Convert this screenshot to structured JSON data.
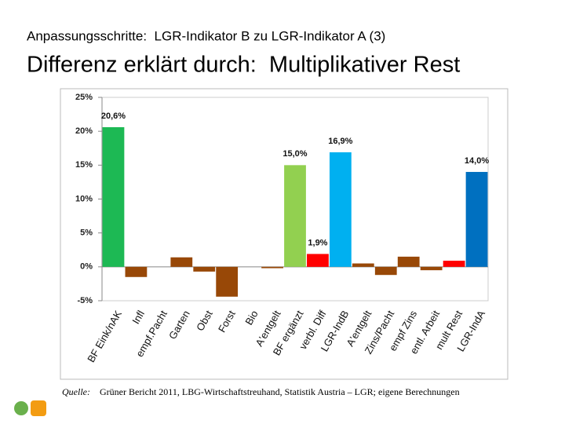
{
  "chart_data": {
    "type": "bar",
    "subtitle": "Anpassungsschritte:  LGR-Indikator B zu LGR-Indikator A (3)",
    "title": "Differenz erklärt durch:  Multiplikativer Rest",
    "categories": [
      "BF Eink/nAK",
      "Infl",
      "empf.Pacht",
      "Garten",
      "Obst",
      "Forst",
      "Bio",
      "A'entgelt",
      "BF ergänzt",
      "verbl. Diff",
      "LGR-IndB",
      "A'entgelt",
      "Zins/Pacht",
      "empf Zins",
      "entl. Arbeit",
      "mult Rest",
      "LGR-IndA"
    ],
    "values": [
      20.6,
      -1.5,
      0,
      1.4,
      -0.7,
      -4.4,
      0,
      -0.2,
      15.0,
      1.9,
      16.9,
      0.5,
      -1.2,
      1.5,
      -0.5,
      0.9,
      14.0
    ],
    "value_labels": [
      "20,6%",
      null,
      null,
      null,
      null,
      null,
      null,
      null,
      "15,0%",
      "1,9%",
      "16,9%",
      null,
      null,
      null,
      null,
      null,
      "14,0%"
    ],
    "colors": [
      "#1db954",
      "#984807",
      "#984807",
      "#984807",
      "#984807",
      "#984807",
      "#984807",
      "#984807",
      "#92d050",
      "#ff0000",
      "#00b0f0",
      "#984807",
      "#984807",
      "#984807",
      "#984807",
      "#ff0000",
      "#0070c0"
    ],
    "ylim": [
      -5,
      25
    ],
    "yticks": [
      {
        "value": -5,
        "label": "-5%"
      },
      {
        "value": 0,
        "label": "0%"
      },
      {
        "value": 5,
        "label": "5%"
      },
      {
        "value": 10,
        "label": "10%"
      },
      {
        "value": 15,
        "label": "15%"
      },
      {
        "value": 20,
        "label": "20%"
      },
      {
        "value": 25,
        "label": "25%"
      }
    ],
    "source_label": "Quelle:",
    "source": "Grüner Bericht 2011, LBG-Wirtschaftstreuhand, Statistik Austria – LGR; eigene Berechnungen"
  }
}
